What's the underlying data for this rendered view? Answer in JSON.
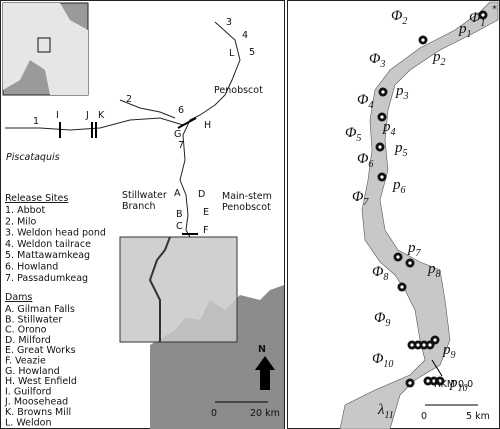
{
  "left_map": {
    "site_labels": [
      "1",
      "2",
      "3",
      "4",
      "5",
      "6",
      "7"
    ],
    "dam_labels": [
      "A",
      "B",
      "C",
      "D",
      "E",
      "F",
      "G",
      "H",
      "I",
      "J",
      "K",
      "L"
    ],
    "rivers": [
      "Penobscot",
      "Piscataquis"
    ],
    "stillwater": [
      "Stillwater",
      "Branch"
    ],
    "main_stem": [
      "Main-stem",
      "Penobscot"
    ],
    "release_sites": {
      "title": "Release Sites",
      "items": [
        "1. Abbot",
        "2. Milo",
        "3. Weldon head pond",
        "4. Weldon tailrace",
        "5. Mattawamkeag",
        "6. Howland",
        "7. Passadumkeag"
      ]
    },
    "dams": {
      "title": "Dams",
      "items": [
        "A. Gilman Falls",
        "B. Stillwater",
        "C. Orono",
        "D. Milford",
        "E. Great Works",
        "F. Veazie",
        "G. Howland",
        "H. West Enfield",
        "I. Guilford",
        "J. Moosehead",
        "K. Browns Mill",
        "L. Weldon"
      ]
    },
    "north": "N",
    "scale": [
      "0",
      "20 km"
    ]
  },
  "right_map": {
    "phi": [
      {
        "symbol": "Φ",
        "sub": "1"
      },
      {
        "symbol": "Φ",
        "sub": "2"
      },
      {
        "symbol": "Φ",
        "sub": "3"
      },
      {
        "symbol": "Φ",
        "sub": "4"
      },
      {
        "symbol": "Φ",
        "sub": "5"
      },
      {
        "symbol": "Φ",
        "sub": "6"
      },
      {
        "symbol": "Φ",
        "sub": "7"
      },
      {
        "symbol": "Φ",
        "sub": "8"
      },
      {
        "symbol": "Φ",
        "sub": "9"
      },
      {
        "symbol": "Φ",
        "sub": "10"
      }
    ],
    "p": [
      {
        "symbol": "p",
        "sub": "1"
      },
      {
        "symbol": "p",
        "sub": "2"
      },
      {
        "symbol": "p",
        "sub": "3"
      },
      {
        "symbol": "p",
        "sub": "4"
      },
      {
        "symbol": "p",
        "sub": "5"
      },
      {
        "symbol": "p",
        "sub": "6"
      },
      {
        "symbol": "p",
        "sub": "7"
      },
      {
        "symbol": "p",
        "sub": "8"
      },
      {
        "symbol": "p",
        "sub": "9"
      },
      {
        "symbol": "p",
        "sub": "10"
      }
    ],
    "lambda": {
      "symbol": "λ",
      "sub": "11"
    },
    "rkm": "RKM 0.0",
    "scale": [
      "0",
      "5 km"
    ]
  }
}
